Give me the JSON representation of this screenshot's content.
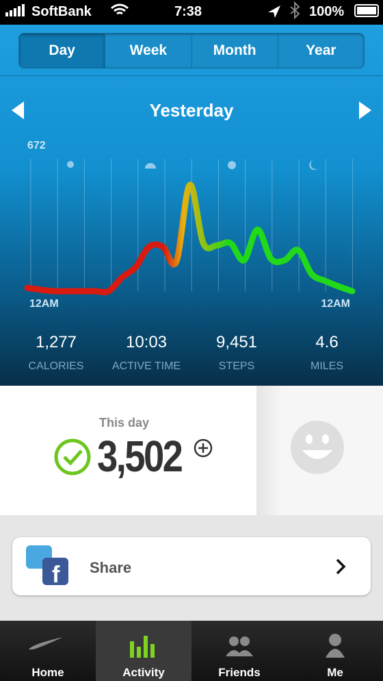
{
  "status_bar": {
    "carrier": "SoftBank",
    "time": "7:38",
    "battery": "100%"
  },
  "tabs": [
    "Day",
    "Week",
    "Month",
    "Year"
  ],
  "nav": {
    "title": "Yesterday"
  },
  "graph": {
    "type": "line",
    "ylim": [
      0,
      672
    ],
    "yticks": [
      672
    ],
    "x_labels": [
      "12AM",
      "12AM"
    ],
    "color_start": "#d81a10",
    "color_mid": "#e8b010",
    "color_end": "#22d81a",
    "values": [
      17,
      7,
      0,
      0,
      0,
      0,
      0,
      70,
      122,
      226,
      226,
      150,
      540,
      244,
      233,
      244,
      157,
      313,
      164,
      157,
      209,
      87,
      52,
      24,
      0
    ]
  },
  "stats": [
    {
      "value": "1,277",
      "label": "CALORIES"
    },
    {
      "value": "10:03",
      "label": "ACTIVE TIME"
    },
    {
      "value": "9,451",
      "label": "STEPS"
    },
    {
      "value": "4.6",
      "label": "MILES"
    }
  ],
  "summary": {
    "label": "This day",
    "value": "3,502"
  },
  "share": {
    "label": "Share"
  },
  "tab_bar": [
    "Home",
    "Activity",
    "Friends",
    "Me"
  ]
}
